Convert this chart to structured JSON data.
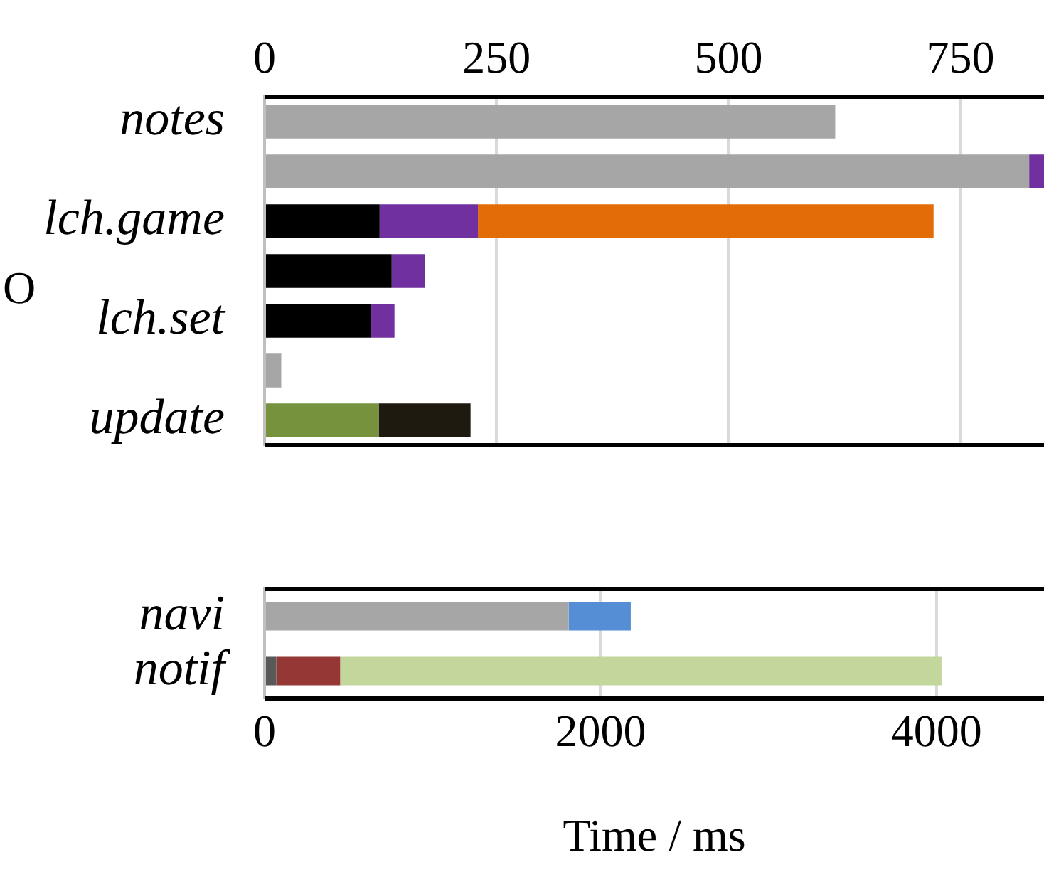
{
  "chart_data": [
    {
      "type": "bar",
      "orientation": "horizontal",
      "stacked": true,
      "categories": [
        "notes",
        null,
        "lch.game",
        null,
        "lch.set",
        null,
        "update"
      ],
      "series": [
        {
          "color": "#a6a6a6",
          "axis": "x2",
          "values": [
            615,
            824,
            null,
            null,
            null,
            18,
            null
          ]
        },
        {
          "color": "#000000",
          "axis": "x2",
          "values": [
            null,
            null,
            124,
            137,
            115,
            null,
            null
          ]
        },
        {
          "color": "#76923c",
          "axis": "x2",
          "values": [
            null,
            null,
            null,
            null,
            null,
            null,
            123
          ]
        },
        {
          "color": "#7030a0",
          "axis": "x2",
          "values": [
            null,
            16,
            106,
            36,
            25,
            null,
            null
          ]
        },
        {
          "color": "#e36c09",
          "axis": "x2",
          "values": [
            null,
            null,
            491,
            null,
            null,
            null,
            null
          ]
        },
        {
          "color": "#1e1a10",
          "axis": "x2",
          "values": [
            null,
            null,
            null,
            null,
            null,
            null,
            99
          ]
        }
      ],
      "x2lim": [
        0,
        840
      ],
      "x2ticks": [
        0,
        250,
        500,
        750
      ],
      "grid": "x",
      "legend": false,
      "annotations": [
        "O"
      ]
    },
    {
      "type": "bar",
      "orientation": "horizontal",
      "stacked": true,
      "categories": [
        "navi",
        "notif"
      ],
      "series": [
        {
          "color": "#a6a6a6",
          "values": [
            1810,
            null
          ]
        },
        {
          "color": "#595959",
          "values": [
            null,
            70
          ]
        },
        {
          "color": "#558ed5",
          "values": [
            370,
            null
          ]
        },
        {
          "color": "#953735",
          "values": [
            null,
            380
          ]
        },
        {
          "color": "#c3d69b",
          "values": [
            null,
            3580
          ]
        }
      ],
      "xlim": [
        0,
        4640
      ],
      "xticks": [
        0,
        2000,
        4000
      ],
      "xlabel": "Time / ms",
      "grid": "x",
      "legend": false
    }
  ]
}
